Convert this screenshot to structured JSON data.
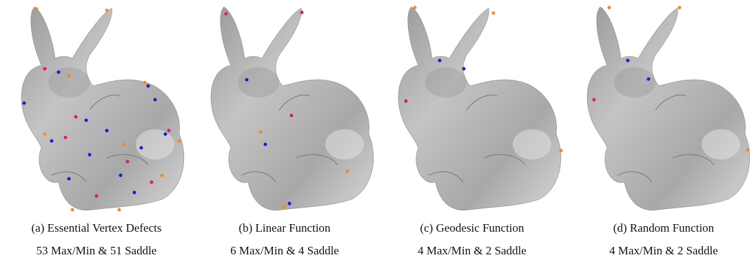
{
  "panels": [
    {
      "label": "(a) Essential Vertex Defects",
      "stats": "53 Max/Min & 51 Saddle"
    },
    {
      "label": "(b) Linear Function",
      "stats": "6 Max/Min & 4 Saddle"
    },
    {
      "label": "(c) Geodesic Function",
      "stats": "4 Max/Min & 2 Saddle"
    },
    {
      "label": "(d) Random Function",
      "stats": "4 Max/Min & 2 Saddle"
    }
  ]
}
